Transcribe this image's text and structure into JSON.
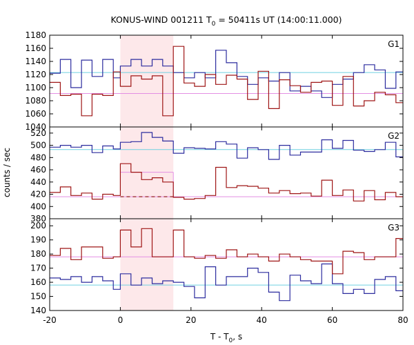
{
  "chart_data": {
    "type": "line",
    "title_main": "KONUS-WIND 001211 T",
    "title_sub": "0",
    "title_rest": " = 50411s UT (14:00:11.000)",
    "xlabel_main": "T - T",
    "xlabel_sub": "0",
    "xlabel_rest": ", s",
    "ylabel": "counts / sec",
    "xlim": [
      -20,
      80
    ],
    "x_ticks": [
      "-20",
      "0",
      "20",
      "40",
      "60",
      "80"
    ],
    "shaded_interval": [
      0,
      15
    ],
    "colors": {
      "blue": "#2b2b9e",
      "red": "#9e1414",
      "cyan": "#6fd0e0",
      "pink": "#e38ee3",
      "shade": "#fde8ea"
    },
    "panels": [
      {
        "label": "G1",
        "ylim": [
          1040,
          1180
        ],
        "y_ticks": [
          1040,
          1060,
          1080,
          1100,
          1120,
          1140,
          1160,
          1180
        ],
        "bin_edges": [
          -20,
          -17,
          -14,
          -11,
          -8,
          -5,
          -2,
          0,
          3,
          6,
          9,
          12,
          15,
          18,
          21,
          24,
          27,
          30,
          33,
          36,
          39,
          42,
          45,
          48,
          51,
          54,
          57,
          60,
          63,
          66,
          69,
          72,
          75,
          78,
          80
        ],
        "series": [
          {
            "color": "blue",
            "values": [
              1122,
              1143,
              1100,
              1142,
              1117,
              1143,
              1115,
              1133,
              1143,
              1133,
              1143,
              1133,
              1123,
              1115,
              1123,
              1115,
              1157,
              1138,
              1117,
              1105,
              1115,
              1110,
              1123,
              1095,
              1102,
              1095,
              1085,
              1105,
              1113,
              1123,
              1135,
              1127,
              1099,
              1124
            ]
          },
          {
            "color": "red",
            "values": [
              1108,
              1088,
              1090,
              1057,
              1090,
              1088,
              1124,
              1102,
              1118,
              1113,
              1118,
              1057,
              1163,
              1107,
              1102,
              1120,
              1105,
              1119,
              1113,
              1082,
              1125,
              1068,
              1112,
              1103,
              1093,
              1108,
              1110,
              1073,
              1117,
              1072,
              1080,
              1093,
              1089,
              1077
            ]
          }
        ],
        "bg_levels": [
          {
            "color": "cyan",
            "y": 1123
          },
          {
            "color": "pink",
            "y": 1091
          }
        ],
        "burst_level": null
      },
      {
        "label": "G2",
        "ylim": [
          380,
          530
        ],
        "y_ticks": [
          380,
          400,
          420,
          440,
          460,
          480,
          500,
          520
        ],
        "bin_edges": [
          -20,
          -17,
          -14,
          -11,
          -8,
          -5,
          -2,
          0,
          3,
          6,
          9,
          12,
          15,
          18,
          21,
          24,
          27,
          30,
          33,
          36,
          39,
          42,
          45,
          48,
          51,
          54,
          57,
          60,
          63,
          66,
          69,
          72,
          75,
          78,
          80
        ],
        "series": [
          {
            "color": "blue",
            "values": [
              497,
              500,
              497,
              500,
              488,
              499,
              494,
              505,
              506,
              521,
              513,
              507,
              487,
              496,
              495,
              494,
              506,
              502,
              479,
              496,
              493,
              477,
              500,
              484,
              489,
              489,
              509,
              495,
              508,
              492,
              490,
              493,
              505,
              481
            ]
          },
          {
            "color": "red",
            "values": [
              423,
              432,
              418,
              422,
              412,
              420,
              418,
              470,
              456,
              444,
              447,
              440,
              415,
              412,
              413,
              418,
              464,
              431,
              434,
              433,
              430,
              422,
              426,
              421,
              422,
              417,
              443,
              418,
              427,
              409,
              426,
              411,
              423,
              416
            ]
          }
        ],
        "bg_levels": [
          {
            "color": "cyan",
            "y": 493
          },
          {
            "color": "pink",
            "y": 416
          }
        ],
        "burst_level": {
          "color": "pink",
          "y": 456,
          "x_range": [
            0,
            15
          ]
        }
      },
      {
        "label": "G3",
        "ylim": [
          140,
          205
        ],
        "y_ticks": [
          140,
          150,
          160,
          170,
          180,
          190,
          200
        ],
        "bin_edges": [
          -20,
          -17,
          -14,
          -11,
          -8,
          -5,
          -2,
          0,
          3,
          6,
          9,
          12,
          15,
          18,
          21,
          24,
          27,
          30,
          33,
          36,
          39,
          42,
          45,
          48,
          51,
          54,
          57,
          60,
          63,
          66,
          69,
          72,
          75,
          78,
          80
        ],
        "series": [
          {
            "color": "blue",
            "values": [
              163,
              162,
              164,
              160,
              164,
              161,
              155,
              166,
              158,
              163,
              159,
              161,
              160,
              157,
              149,
              171,
              158,
              164,
              164,
              170,
              167,
              153,
              147,
              165,
              161,
              159,
              173,
              159,
              152,
              155,
              152,
              162,
              164,
              154
            ]
          },
          {
            "color": "red",
            "values": [
              179,
              184,
              176,
              185,
              185,
              177,
              178,
              197,
              185,
              198,
              178,
              178,
              197,
              178,
              177,
              179,
              177,
              183,
              178,
              180,
              178,
              175,
              180,
              178,
              176,
              175,
              175,
              166,
              182,
              181,
              176,
              178,
              178,
              191
            ]
          }
        ],
        "bg_levels": [
          {
            "color": "pink",
            "y": 178
          },
          {
            "color": "cyan",
            "y": 158
          }
        ],
        "burst_level": null
      }
    ]
  }
}
